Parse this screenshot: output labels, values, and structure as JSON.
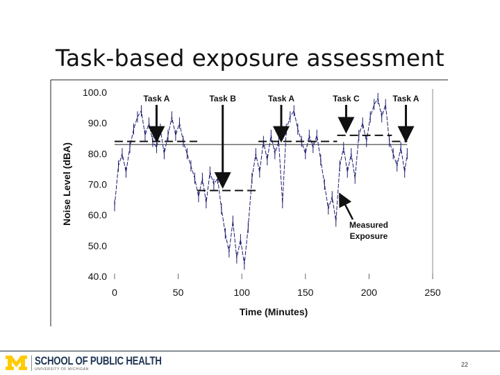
{
  "slide": {
    "title": "Task-based exposure assessment",
    "page_number": "22",
    "footer": {
      "school": "SCHOOL OF PUBLIC HEALTH",
      "university": "UNIVERSITY OF MICHIGAN",
      "logo_color": "#FFCB05",
      "text_color": "#1F3554"
    }
  },
  "chart_data": {
    "type": "line",
    "title": "",
    "xlabel": "Time (Minutes)",
    "ylabel": "Noise Level (dBA)",
    "xlim": [
      0,
      250
    ],
    "ylim": [
      40,
      100
    ],
    "x_ticks": [
      "0",
      "50",
      "100",
      "150",
      "200",
      "250"
    ],
    "y_ticks": [
      "40.0",
      "50.0",
      "60.0",
      "70.0",
      "80.0",
      "90.0",
      "100.0"
    ],
    "grid": false,
    "series": [
      {
        "name": "Measured Exposure",
        "color": "#1a1a6e",
        "points": [
          [
            0,
            63
          ],
          [
            3,
            76
          ],
          [
            6,
            80
          ],
          [
            9,
            74
          ],
          [
            12,
            82
          ],
          [
            15,
            88
          ],
          [
            18,
            92
          ],
          [
            21,
            94
          ],
          [
            24,
            86
          ],
          [
            27,
            90
          ],
          [
            30,
            84
          ],
          [
            33,
            82
          ],
          [
            36,
            88
          ],
          [
            39,
            80
          ],
          [
            42,
            86
          ],
          [
            45,
            92
          ],
          [
            48,
            86
          ],
          [
            51,
            90
          ],
          [
            54,
            84
          ],
          [
            57,
            80
          ],
          [
            60,
            76
          ],
          [
            63,
            72
          ],
          [
            66,
            66
          ],
          [
            69,
            72
          ],
          [
            72,
            64
          ],
          [
            75,
            74
          ],
          [
            78,
            70
          ],
          [
            81,
            72
          ],
          [
            84,
            62
          ],
          [
            87,
            54
          ],
          [
            90,
            48
          ],
          [
            93,
            58
          ],
          [
            96,
            46
          ],
          [
            99,
            52
          ],
          [
            102,
            44
          ],
          [
            105,
            56
          ],
          [
            108,
            72
          ],
          [
            111,
            80
          ],
          [
            114,
            74
          ],
          [
            117,
            84
          ],
          [
            120,
            78
          ],
          [
            123,
            86
          ],
          [
            126,
            80
          ],
          [
            129,
            84
          ],
          [
            132,
            64
          ],
          [
            135,
            88
          ],
          [
            138,
            92
          ],
          [
            141,
            94
          ],
          [
            144,
            88
          ],
          [
            147,
            84
          ],
          [
            150,
            80
          ],
          [
            153,
            86
          ],
          [
            156,
            82
          ],
          [
            159,
            86
          ],
          [
            162,
            78
          ],
          [
            165,
            70
          ],
          [
            168,
            62
          ],
          [
            171,
            66
          ],
          [
            174,
            58
          ],
          [
            177,
            76
          ],
          [
            180,
            82
          ],
          [
            183,
            74
          ],
          [
            186,
            80
          ],
          [
            189,
            72
          ],
          [
            192,
            86
          ],
          [
            195,
            90
          ],
          [
            198,
            84
          ],
          [
            201,
            92
          ],
          [
            204,
            96
          ],
          [
            207,
            98
          ],
          [
            210,
            92
          ],
          [
            213,
            96
          ],
          [
            216,
            84
          ],
          [
            219,
            80
          ],
          [
            222,
            76
          ],
          [
            225,
            82
          ],
          [
            228,
            74
          ],
          [
            230,
            80
          ]
        ]
      }
    ],
    "task_levels": [
      {
        "task": "Task A",
        "start": 0,
        "end": 65,
        "level": 84
      },
      {
        "task": "Task B",
        "start": 65,
        "end": 113,
        "level": 68
      },
      {
        "task": "Task A",
        "start": 113,
        "end": 175,
        "level": 84
      },
      {
        "task": "Task C",
        "start": 175,
        "end": 218,
        "level": 86
      },
      {
        "task": "Task A",
        "start": 218,
        "end": 230,
        "level": 84
      }
    ],
    "reference_line": {
      "level": 83,
      "start": 0,
      "end": 230
    },
    "annotations": [
      {
        "label": "Task A",
        "x": 33,
        "arrow_to": 84
      },
      {
        "label": "Task B",
        "x": 85,
        "arrow_to": 69
      },
      {
        "label": "Task A",
        "x": 131,
        "arrow_to": 84
      },
      {
        "label": "Task C",
        "x": 182,
        "arrow_to": 87
      },
      {
        "label": "Task A",
        "x": 229,
        "arrow_to": 84
      },
      {
        "label": "Measured\nExposure",
        "x": 176,
        "arrow_to": 67
      }
    ]
  }
}
